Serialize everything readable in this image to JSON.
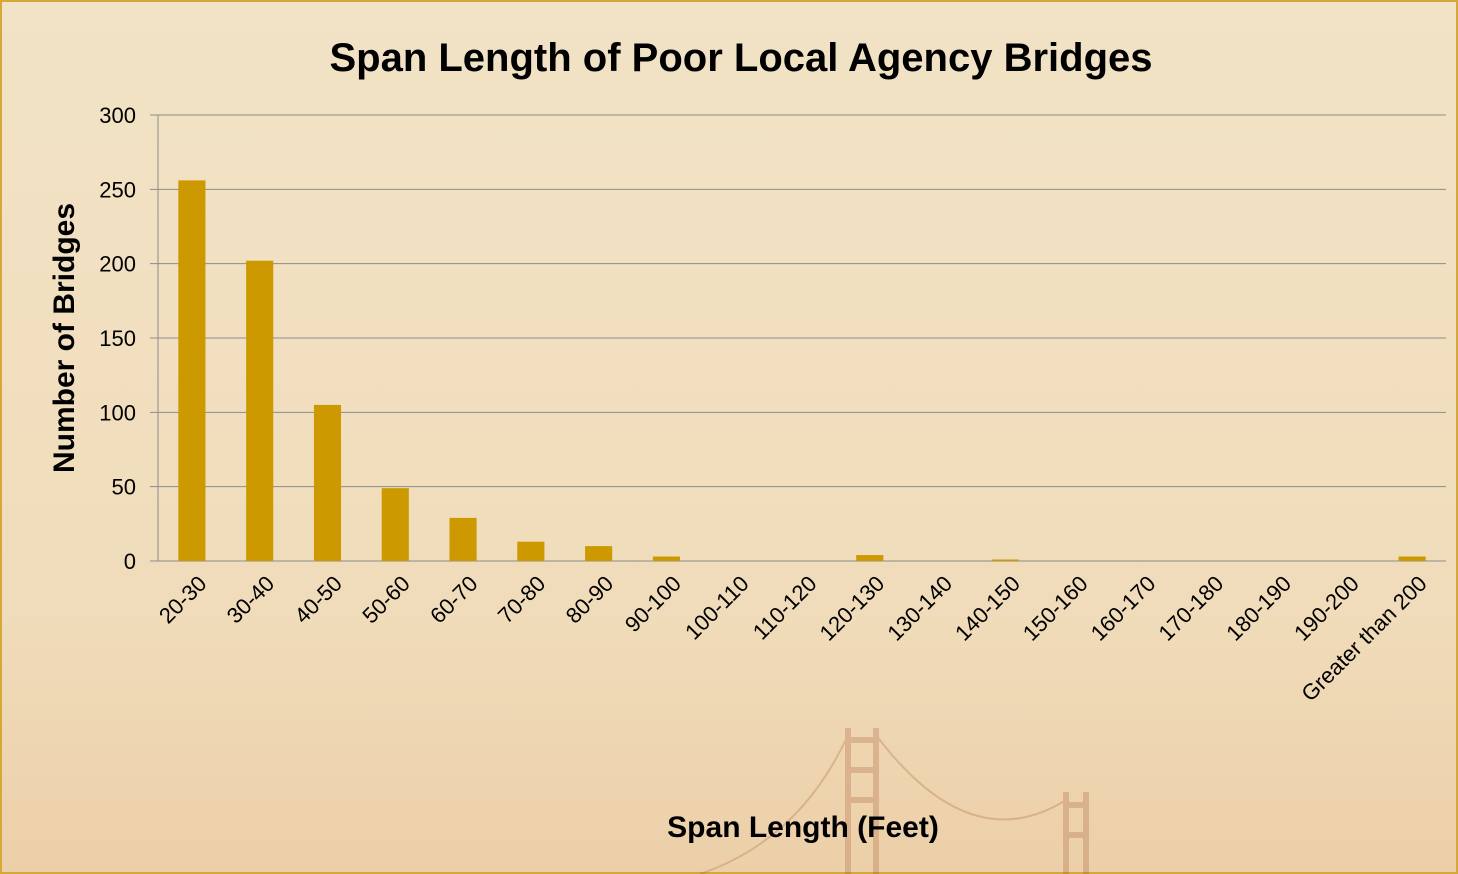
{
  "chart_data": {
    "type": "bar",
    "title": "Span Length of Poor Local Agency Bridges",
    "x_label": "Span Length (Feet)",
    "y_label": "Number of Bridges",
    "categories": [
      "20-30",
      "30-40",
      "40-50",
      "50-60",
      "60-70",
      "70-80",
      "80-90",
      "90-100",
      "100-110",
      "110-120",
      "120-130",
      "130-140",
      "140-150",
      "150-160",
      "160-170",
      "170-180",
      "180-190",
      "190-200",
      "Greater than 200"
    ],
    "values": [
      256,
      202,
      105,
      49,
      29,
      13,
      10,
      3,
      0,
      0,
      4,
      0,
      1,
      0,
      0,
      0,
      0,
      0,
      3
    ],
    "color": "#cc9900",
    "ylim": [
      0,
      300
    ],
    "yticks": [
      0,
      50,
      100,
      150,
      200,
      250,
      300
    ],
    "grid": true
  }
}
